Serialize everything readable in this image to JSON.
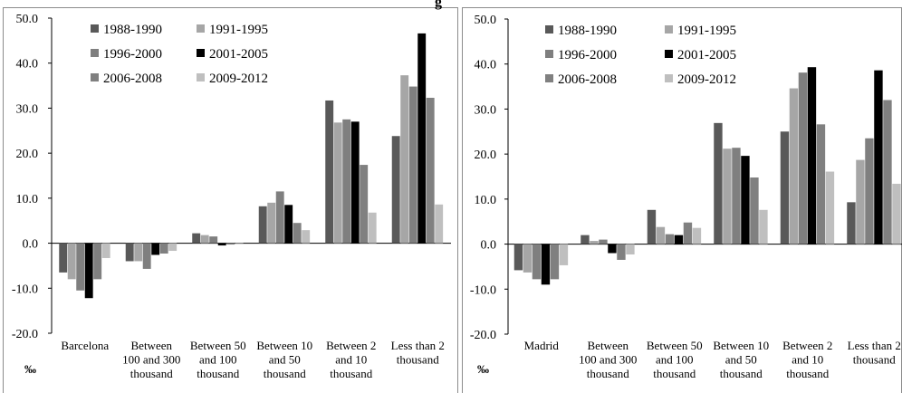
{
  "title": "g",
  "chart_data": [
    {
      "type": "bar",
      "categories": [
        [
          "Barcelona"
        ],
        [
          "Between",
          "100 and 300",
          "thousand"
        ],
        [
          "Between 50",
          "and 100",
          "thousand"
        ],
        [
          "Between 10",
          "and 50",
          "thousand"
        ],
        [
          "Between 2",
          "and 10",
          "thousand"
        ],
        [
          "Less than 2",
          "thousand"
        ]
      ],
      "series": [
        {
          "name": "1988-1990",
          "color": "#595959",
          "values": [
            -6.5,
            -4.0,
            2.2,
            8.2,
            31.7,
            23.8
          ]
        },
        {
          "name": "1991-1995",
          "color": "#a6a6a6",
          "values": [
            -8.0,
            -4.0,
            1.8,
            9.0,
            26.8,
            37.3
          ]
        },
        {
          "name": "1996-2000",
          "color": "#7f7f7f",
          "values": [
            -10.5,
            -5.7,
            1.5,
            11.5,
            27.5,
            34.8
          ]
        },
        {
          "name": "2001-2005",
          "color": "#000000",
          "values": [
            -12.2,
            -2.6,
            -0.5,
            8.5,
            27.0,
            46.6
          ]
        },
        {
          "name": "2006-2008",
          "color": "#808080",
          "values": [
            -8.0,
            -2.3,
            -0.3,
            4.5,
            17.4,
            32.3
          ]
        },
        {
          "name": "2009-2012",
          "color": "#bfbfbf",
          "values": [
            -3.3,
            -1.7,
            -0.2,
            2.9,
            6.8,
            8.6
          ]
        }
      ],
      "ylim": [
        -20,
        50
      ],
      "yticks": [
        "-20.0",
        "-10.0",
        "0.0",
        "10.0",
        "20.0",
        "30.0",
        "40.0",
        "50.0"
      ],
      "ylabel": "‰",
      "legend_position": "top-left"
    },
    {
      "type": "bar",
      "categories": [
        [
          "Madrid"
        ],
        [
          "Between",
          "100 and 300",
          "thousand"
        ],
        [
          "Between 50",
          "and 100",
          "thousand"
        ],
        [
          "Between 10",
          "and 50",
          "thousand"
        ],
        [
          "Between 2",
          "and 10",
          "thousand"
        ],
        [
          "Less than 2",
          "thousand"
        ]
      ],
      "series": [
        {
          "name": "1988-1990",
          "color": "#595959",
          "values": [
            -5.8,
            2.0,
            7.6,
            26.9,
            25.0,
            9.3
          ]
        },
        {
          "name": "1991-1995",
          "color": "#a6a6a6",
          "values": [
            -6.3,
            0.7,
            3.8,
            21.2,
            34.6,
            18.7
          ]
        },
        {
          "name": "1996-2000",
          "color": "#7f7f7f",
          "values": [
            -7.8,
            1.0,
            2.2,
            21.4,
            38.1,
            23.5
          ]
        },
        {
          "name": "2001-2005",
          "color": "#000000",
          "values": [
            -9.0,
            -2.0,
            2.0,
            19.6,
            39.3,
            38.6
          ]
        },
        {
          "name": "2006-2008",
          "color": "#808080",
          "values": [
            -7.8,
            -3.5,
            4.8,
            14.8,
            26.6,
            32.0
          ]
        },
        {
          "name": "2009-2012",
          "color": "#bfbfbf",
          "values": [
            -4.7,
            -2.3,
            3.6,
            7.6,
            16.1,
            13.4
          ]
        }
      ],
      "ylim": [
        -20,
        50
      ],
      "yticks": [
        "-20.0",
        "-10.0",
        "0.0",
        "10.0",
        "20.0",
        "30.0",
        "40.0",
        "50.0"
      ],
      "ylabel": "‰",
      "legend_position": "top-left"
    }
  ]
}
